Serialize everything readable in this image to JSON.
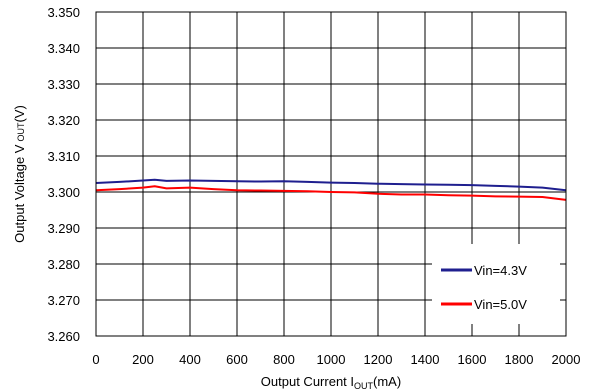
{
  "chart_data": {
    "type": "line",
    "xlabel_main": "Output Current I",
    "xlabel_sub": "OUT",
    "xlabel_end": "(mA)",
    "ylabel_main": "Output Voltage V",
    "ylabel_sub": "OUT",
    "ylabel_end": "(V)",
    "xlim": [
      0,
      2000
    ],
    "ylim": [
      3.26,
      3.35
    ],
    "xticks": [
      "0",
      "200",
      "400",
      "600",
      "800",
      "1000",
      "1200",
      "1400",
      "1600",
      "1800",
      "2000"
    ],
    "yticks": [
      "3.350",
      "3.340",
      "3.330",
      "3.320",
      "3.310",
      "3.300",
      "3.290",
      "3.280",
      "3.270",
      "3.260"
    ],
    "grid": true,
    "legend_position": "bottom-right",
    "series": [
      {
        "name": "Vin=4.3V",
        "color": "#1f1f8f",
        "x": [
          0,
          100,
          200,
          250,
          300,
          400,
          500,
          600,
          700,
          800,
          900,
          1000,
          1100,
          1200,
          1300,
          1400,
          1500,
          1600,
          1700,
          1800,
          1900,
          2000
        ],
        "y": [
          3.3025,
          3.3028,
          3.3032,
          3.3034,
          3.3031,
          3.3032,
          3.3031,
          3.303,
          3.3029,
          3.303,
          3.3028,
          3.3026,
          3.3025,
          3.3023,
          3.3022,
          3.3021,
          3.302,
          3.3019,
          3.3017,
          3.3015,
          3.3012,
          3.3005
        ]
      },
      {
        "name": "Vin=5.0V",
        "color": "#ff0000",
        "x": [
          0,
          100,
          200,
          250,
          300,
          400,
          500,
          600,
          700,
          800,
          900,
          1000,
          1100,
          1200,
          1300,
          1400,
          1500,
          1600,
          1700,
          1800,
          1900,
          2000
        ],
        "y": [
          3.3005,
          3.3008,
          3.3012,
          3.3016,
          3.301,
          3.3012,
          3.3008,
          3.3005,
          3.3004,
          3.3003,
          3.3002,
          3.3,
          3.2999,
          3.2995,
          3.2993,
          3.2993,
          3.2991,
          3.299,
          3.2988,
          3.2987,
          3.2986,
          3.2978
        ]
      }
    ]
  }
}
